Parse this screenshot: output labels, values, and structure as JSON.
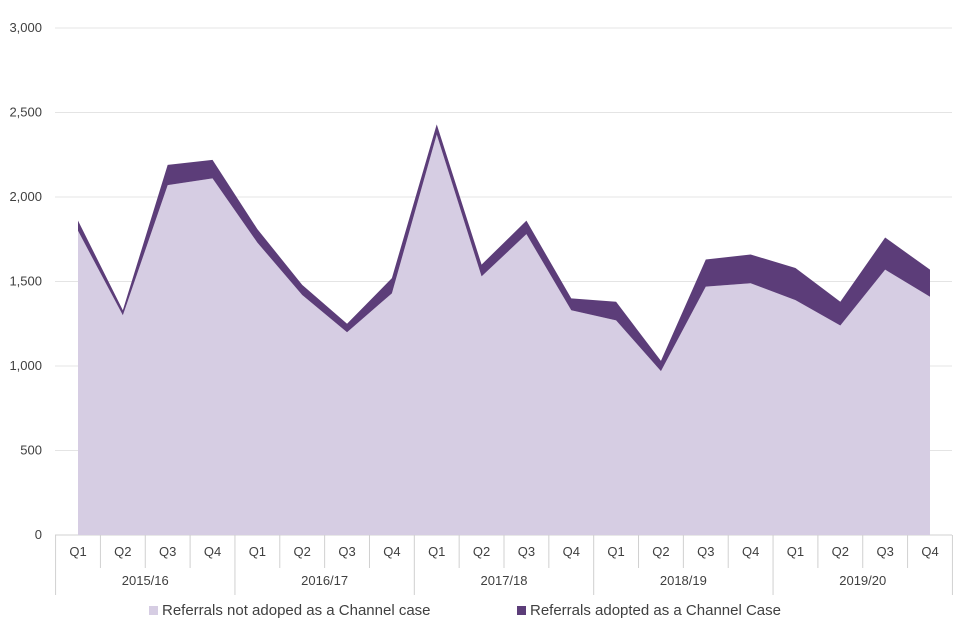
{
  "chart_data": {
    "type": "area",
    "stacked": true,
    "categories": [
      "Q1",
      "Q2",
      "Q3",
      "Q4",
      "Q1",
      "Q2",
      "Q3",
      "Q4",
      "Q1",
      "Q2",
      "Q3",
      "Q4",
      "Q1",
      "Q2",
      "Q3",
      "Q4",
      "Q1",
      "Q2",
      "Q3",
      "Q4"
    ],
    "groups": [
      {
        "label": "2015/16",
        "span": 4
      },
      {
        "label": "2016/17",
        "span": 4
      },
      {
        "label": "2017/18",
        "span": 4
      },
      {
        "label": "2018/19",
        "span": 4
      },
      {
        "label": "2019/20",
        "span": 4
      }
    ],
    "series": [
      {
        "name": "Referrals not adoped as a Channel case",
        "color": "#d6cde3",
        "values": [
          1800,
          1300,
          2070,
          2110,
          1730,
          1420,
          1200,
          1430,
          2370,
          1530,
          1780,
          1330,
          1270,
          970,
          1470,
          1490,
          1390,
          1240,
          1570,
          1410
        ]
      },
      {
        "name": "Referrals adopted as a Channel Case",
        "color": "#5c3d79",
        "values": [
          60,
          30,
          120,
          110,
          80,
          60,
          50,
          90,
          60,
          70,
          80,
          70,
          110,
          60,
          160,
          170,
          190,
          140,
          190,
          160
        ]
      }
    ],
    "yticks": [
      "0",
      "500",
      "1,000",
      "1,500",
      "2,000",
      "2,500",
      "3,000"
    ],
    "ylim": [
      0,
      3000
    ],
    "grid": true,
    "legend": "bottom"
  }
}
